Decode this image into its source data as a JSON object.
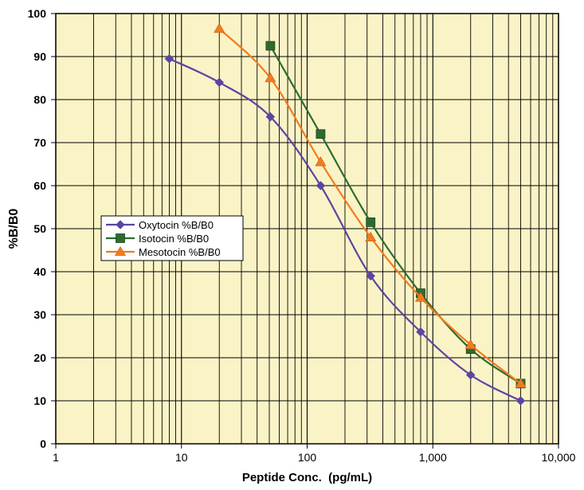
{
  "chart_data": {
    "type": "line",
    "xlabel": "Peptide Conc.  (pg/mL)",
    "ylabel": "%B/B0",
    "xscale": "log",
    "xlim": [
      1,
      10000
    ],
    "ylim": [
      0,
      100
    ],
    "x_ticks": [
      {
        "value": 1,
        "label": "1"
      },
      {
        "value": 10,
        "label": "10"
      },
      {
        "value": 100,
        "label": "100"
      },
      {
        "value": 1000,
        "label": "1,000"
      },
      {
        "value": 10000,
        "label": "10,000"
      }
    ],
    "y_ticks": [
      0,
      10,
      20,
      30,
      40,
      50,
      60,
      70,
      80,
      90,
      100
    ],
    "grid": "major and minor vertical, major horizontal",
    "legend_position": "left-middle",
    "plot_background": "#FAF3C6",
    "series": [
      {
        "name": "Oxytocin %B/B0",
        "color": "#5B45A0",
        "marker": "diamond",
        "points": [
          {
            "x": 8,
            "y": 89.5
          },
          {
            "x": 20,
            "y": 84
          },
          {
            "x": 51,
            "y": 76
          },
          {
            "x": 128,
            "y": 60
          },
          {
            "x": 320,
            "y": 39
          },
          {
            "x": 800,
            "y": 26
          },
          {
            "x": 2000,
            "y": 16
          },
          {
            "x": 5000,
            "y": 10
          }
        ]
      },
      {
        "name": "Isotocin %B/B0",
        "color": "#2E6B2E",
        "marker": "square",
        "points": [
          {
            "x": 51,
            "y": 92.5
          },
          {
            "x": 128,
            "y": 72
          },
          {
            "x": 320,
            "y": 51.5
          },
          {
            "x": 800,
            "y": 35
          },
          {
            "x": 2000,
            "y": 22
          },
          {
            "x": 5000,
            "y": 14
          }
        ]
      },
      {
        "name": "Mesotocin %B/B0",
        "color": "#F07C20",
        "marker": "triangle",
        "points": [
          {
            "x": 20,
            "y": 96.5
          },
          {
            "x": 51,
            "y": 85
          },
          {
            "x": 128,
            "y": 65.5
          },
          {
            "x": 320,
            "y": 48
          },
          {
            "x": 800,
            "y": 34
          },
          {
            "x": 2000,
            "y": 23
          },
          {
            "x": 5000,
            "y": 14
          }
        ]
      }
    ]
  }
}
